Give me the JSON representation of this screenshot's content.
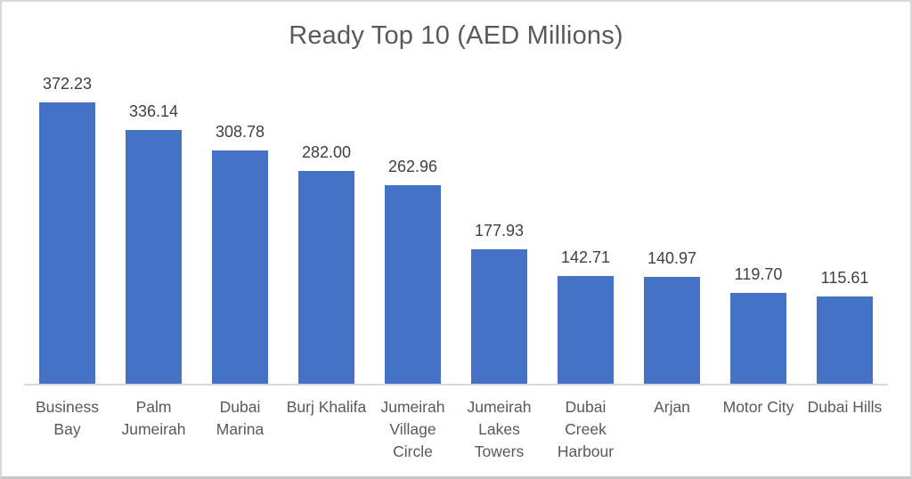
{
  "chart_data": {
    "type": "bar",
    "title": "Ready Top 10 (AED Millions)",
    "categories": [
      "Business Bay",
      "Palm Jumeirah",
      "Dubai Marina",
      "Burj Khalifa",
      "Jumeirah Village Circle",
      "Jumeirah Lakes Towers",
      "Dubai Creek Harbour",
      "Arjan",
      "Motor City",
      "Dubai Hills"
    ],
    "values": [
      372.23,
      336.14,
      308.78,
      282.0,
      262.96,
      177.93,
      142.71,
      140.97,
      119.7,
      115.61
    ],
    "value_labels": [
      "372.23",
      "336.14",
      "308.78",
      "282.00",
      "262.96",
      "177.93",
      "142.71",
      "140.97",
      "119.70",
      "115.61"
    ],
    "xlabel": "",
    "ylabel": "",
    "ylim": [
      0,
      400
    ],
    "grid": false,
    "legend_position": "none",
    "data_labels": "above-bars",
    "bar_color": "#4472C4",
    "title_color": "#595959",
    "data_label_color": "#404040",
    "category_label_color": "#595959",
    "axis_line_color": "#d9d9d9"
  }
}
